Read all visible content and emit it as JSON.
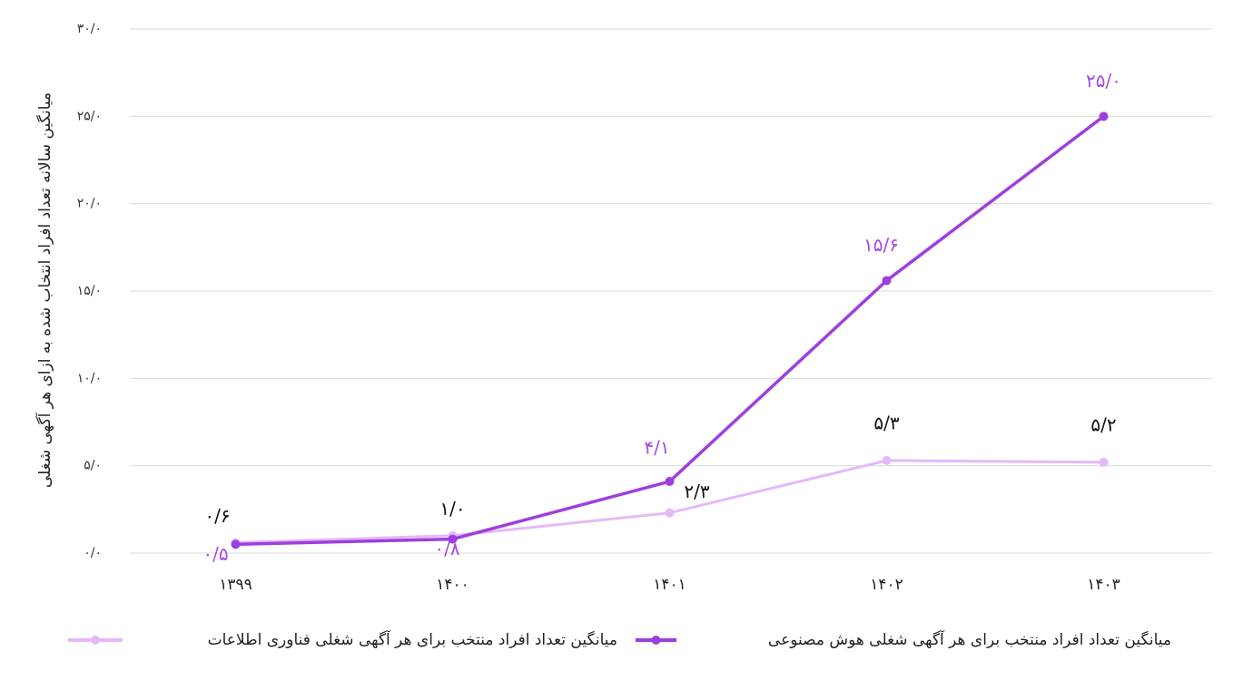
{
  "chart_data": {
    "type": "line",
    "y_label": "میانگین سالانه تعداد افراد انتخاب شده به ازای هر آگهی شغلی",
    "categories": [
      "۱۳۹۹",
      "۱۴۰۰",
      "۱۴۰۱",
      "۱۴۰۲",
      "۱۴۰۳"
    ],
    "series": [
      {
        "name": "میانگین تعداد افراد منتخب برای هر آگهی شغلی فناوری اطلاعات",
        "color": "#e5b8f9",
        "label_color": "#111111",
        "values": [
          0.6,
          1.0,
          2.3,
          5.3,
          5.2
        ],
        "value_labels": [
          "۰/۶",
          "۱/۰",
          "۲/۳",
          "۵/۳",
          "۵/۲"
        ]
      },
      {
        "name": "میانگین تعداد افراد منتخب برای هر آگهی شغلی هوش مصنوعی",
        "color": "#9d3fdd",
        "label_color": "#a648e0",
        "values": [
          0.5,
          0.8,
          4.1,
          15.6,
          25.0
        ],
        "value_labels": [
          "۰/۵",
          "۰/۸",
          "۴/۱",
          "۱۵/۶",
          "۲۵/۰"
        ]
      }
    ],
    "ylim": [
      0,
      30
    ],
    "yticks": [
      {
        "value": 0,
        "label": "۰/۰"
      },
      {
        "value": 5,
        "label": "۵/۰"
      },
      {
        "value": 10,
        "label": "۱۰/۰"
      },
      {
        "value": 15,
        "label": "۱۵/۰"
      },
      {
        "value": 20,
        "label": "۲۰/۰"
      },
      {
        "value": 25,
        "label": "۲۵/۰"
      },
      {
        "value": 30,
        "label": "۳۰/۰"
      }
    ],
    "grid": true
  }
}
